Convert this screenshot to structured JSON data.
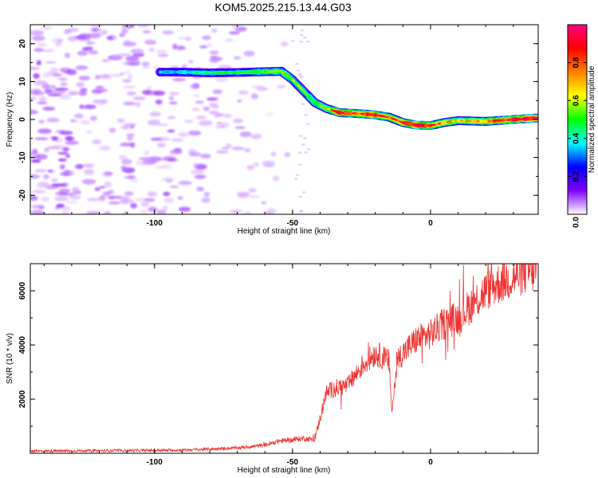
{
  "title": "KOM5.2025.215.13.44.G03",
  "colorbar": {
    "label": "Normalized spectral amplitude",
    "ticks": [
      "0.0",
      "0.2",
      "0.4",
      "0.6",
      "0.8"
    ],
    "colors": [
      "#ffffff",
      "#7f00ff",
      "#0000ff",
      "#00ffff",
      "#00ff00",
      "#ffff00",
      "#ff7f00",
      "#ff0000",
      "#ff0080"
    ]
  },
  "chart_data": [
    {
      "type": "heatmap",
      "xlabel": "Height of straight line (km)",
      "ylabel": "Frequency (Hz)",
      "xlim": [
        -145,
        39
      ],
      "ylim": [
        -25,
        25
      ],
      "xticks": [
        "-100",
        "-50",
        "0"
      ],
      "yticks": [
        "-20",
        "-10",
        "0",
        "10",
        "20"
      ],
      "zlim": [
        0,
        1
      ],
      "ridge": {
        "x": [
          -98,
          -90,
          -80,
          -70,
          -60,
          -54,
          -50,
          -46,
          -42,
          -38,
          -33,
          -25,
          -20,
          -15,
          -10,
          -5,
          0,
          5,
          10,
          20,
          30,
          39
        ],
        "frequency": [
          12.5,
          12.5,
          12.3,
          12.4,
          12.6,
          12.7,
          10.5,
          7.5,
          4.5,
          3.0,
          1.8,
          1.5,
          1.2,
          0.6,
          -0.8,
          -1.5,
          -1.6,
          -0.8,
          -0.3,
          -0.5,
          0.0,
          0.4
        ],
        "amplitude": [
          0.35,
          0.4,
          0.45,
          0.45,
          0.55,
          0.6,
          0.55,
          0.5,
          0.55,
          0.6,
          0.9,
          0.85,
          0.9,
          0.75,
          0.85,
          0.95,
          0.85,
          0.7,
          0.65,
          0.75,
          0.95,
          0.95
        ]
      },
      "noise_region_x": [
        -145,
        -50
      ]
    },
    {
      "type": "line",
      "xlabel": "Height of straight line (km)",
      "ylabel": "SNR (10 * v/v)",
      "xlim": [
        -145,
        39
      ],
      "ylim": [
        0,
        7000
      ],
      "xticks": [
        "-100",
        "-50",
        "0"
      ],
      "yticks": [
        "2000",
        "4000",
        "6000"
      ],
      "color": "#ee3333",
      "series": [
        {
          "x": [
            -145,
            -130,
            -115,
            -100,
            -90,
            -80,
            -70,
            -60,
            -55,
            -50,
            -46,
            -42,
            -40,
            -38,
            -35,
            -30,
            -25,
            -20,
            -15,
            -14,
            -12,
            -10,
            -5,
            0,
            5,
            10,
            15,
            20,
            25,
            30,
            35,
            39
          ],
          "values": [
            80,
            90,
            100,
            110,
            120,
            150,
            200,
            300,
            450,
            500,
            550,
            500,
            1300,
            2200,
            2400,
            2500,
            3200,
            3700,
            3400,
            1500,
            3500,
            3700,
            4200,
            4400,
            4800,
            5000,
            5500,
            6000,
            6300,
            6500,
            6700,
            6750
          ]
        }
      ]
    }
  ]
}
